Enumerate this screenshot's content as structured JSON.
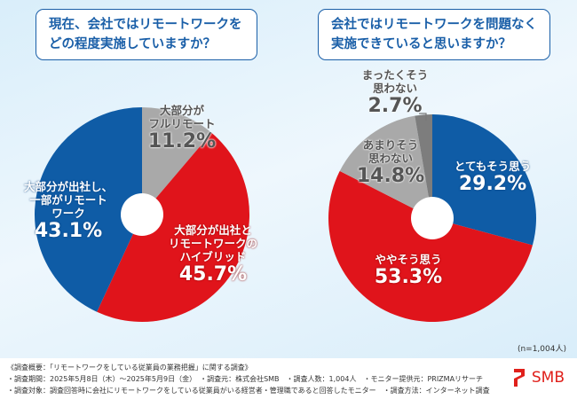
{
  "chart_data": [
    {
      "type": "pie",
      "title": "現在、会社ではリモートワークをどの程度実施していますか？",
      "slices": [
        {
          "label": "大部分がフルリモート",
          "value": 11.2,
          "display": "11.2%",
          "color": "#a9a9a9"
        },
        {
          "label": "大部分が出社とリモートワークのハイブリッド",
          "value": 45.7,
          "display": "45.7%",
          "color": "#e0141b"
        },
        {
          "label": "大部分が出社し、一部がリモートワーク",
          "value": 43.1,
          "display": "43.1%",
          "color": "#0f5ca6"
        }
      ],
      "start": "top",
      "direction": "clockwise"
    },
    {
      "type": "pie",
      "title": "会社ではリモートワークを問題なく実施できていると思いますか？",
      "slices": [
        {
          "label": "とてもそう思う",
          "value": 29.2,
          "display": "29.2%",
          "color": "#0f5ca6"
        },
        {
          "label": "ややそう思う",
          "value": 53.3,
          "display": "53.3%",
          "color": "#e0141b"
        },
        {
          "label": "あまりそう思わない",
          "value": 14.8,
          "display": "14.8%",
          "color": "#a9a9a9"
        },
        {
          "label": "まったくそう思わない",
          "value": 2.7,
          "display": "2.7%",
          "color": "#7d7d7d"
        }
      ],
      "start": "top",
      "direction": "clockwise"
    }
  ],
  "labels": {
    "c1": [
      [
        "大部分が",
        "フルリモート"
      ],
      [
        "大部分が出社と",
        "リモートワークの",
        "ハイブリッド"
      ],
      [
        "大部分が出社し、",
        "一部がリモート",
        "ワーク"
      ]
    ],
    "c2": [
      [
        "とてもそう思う"
      ],
      [
        "ややそう思う"
      ],
      [
        "あまりそう",
        "思わない"
      ],
      [
        "まったくそう",
        "思わない"
      ]
    ]
  },
  "sample_size": "(n=1,004人)",
  "footer": {
    "line1": "《調査概要：「リモートワークをしている従業員の業務把握」に関する調査》",
    "line2": "・調査期間：2025年5月8日（木）～2025年5月9日（金）　・調査元：株式会社SMB　・調査人数：1,004人　・モニター提供元：PRIZMAリサーチ",
    "line3": "・調査対象：調査回答時に会社にリモートワークをしている従業員がいる経営者・管理職であると回答したモニター　・調査方法：インターネット調査"
  },
  "logo": "SMB"
}
